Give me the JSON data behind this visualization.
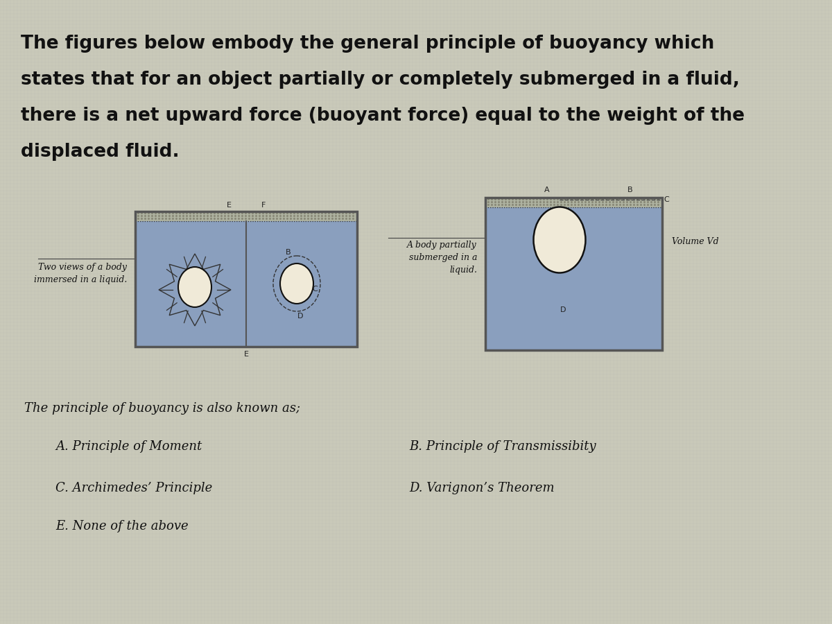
{
  "bg_color": "#c9c9b9",
  "title_line1": "The figures below embody the general principle of buoyancy which",
  "title_line2": "states that for an object partially or completely submerged in a fluid,",
  "title_line3": "there is a net upward force (buoyant force) equal to the weight of the",
  "title_line4": "displaced fluid.",
  "label_left_line1": "Two views of a body",
  "label_left_line2": "immersed in a liquid.",
  "label_right_line1": "A body partially",
  "label_right_line2": "submerged in a",
  "label_right_line3": "liquid.",
  "question_text": "The principle of buoyancy is also known as;",
  "choice_A": "A. Principle of Moment",
  "choice_B": "B. Principle of Transmissibity",
  "choice_C": "C. Archimedes’ Principle",
  "choice_D": "D. Varignon’s Theorem",
  "choice_E": "E. None of the above",
  "fluid_color": "#8a9fbe",
  "fluid_color2": "#9aafc8",
  "box_outline": "#555555",
  "body_fill": "#f0ead8",
  "body_edge": "#111111",
  "hatch_color": "#b8b899",
  "volume_label": "Volume Vd"
}
